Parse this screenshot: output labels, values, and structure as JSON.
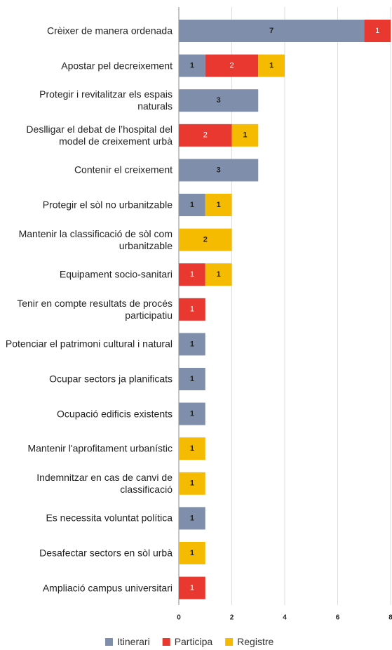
{
  "chart_data": {
    "type": "stacked-bar-horizontal",
    "categories": [
      "Crèixer de manera ordenada",
      "Apostar pel decreixement",
      "Protegir i revitalitzar els espais naturals",
      "Deslligar el debat de l’hospital del model de creixement urbà",
      "Contenir el creixement",
      "Protegir el sòl no urbanitzable",
      "Mantenir la classificació de sòl com urbanitzable",
      "Equipament socio-sanitari",
      "Tenir en compte resultats de procés participatiu",
      "Potenciar el patrimoni cultural i natural",
      "Ocupar sectors ja planificats",
      "Ocupació edificis existents",
      "Mantenir l'aprofitament urbanístic",
      "Indemnitzar en cas de canvi de classificació",
      "Es necessita voluntat política",
      "Desafectar sectors en sòl urbà",
      "Ampliació campus universitari"
    ],
    "series": [
      {
        "name": "Itinerari",
        "color": "#7f8fab",
        "values": [
          7,
          1,
          3,
          0,
          3,
          1,
          0,
          0,
          0,
          1,
          1,
          1,
          0,
          0,
          1,
          0,
          0
        ]
      },
      {
        "name": "Participa",
        "color": "#e8382f",
        "values": [
          1,
          2,
          0,
          2,
          0,
          0,
          0,
          1,
          1,
          0,
          0,
          0,
          0,
          0,
          0,
          0,
          1
        ]
      },
      {
        "name": "Registre",
        "color": "#f5bb00",
        "values": [
          0,
          1,
          0,
          1,
          0,
          1,
          2,
          1,
          0,
          0,
          0,
          0,
          1,
          1,
          0,
          1,
          0
        ]
      }
    ],
    "xlim": [
      0,
      8
    ],
    "xticks": [
      0,
      2,
      4,
      6,
      8
    ],
    "grid": true,
    "legend": "bottom"
  }
}
